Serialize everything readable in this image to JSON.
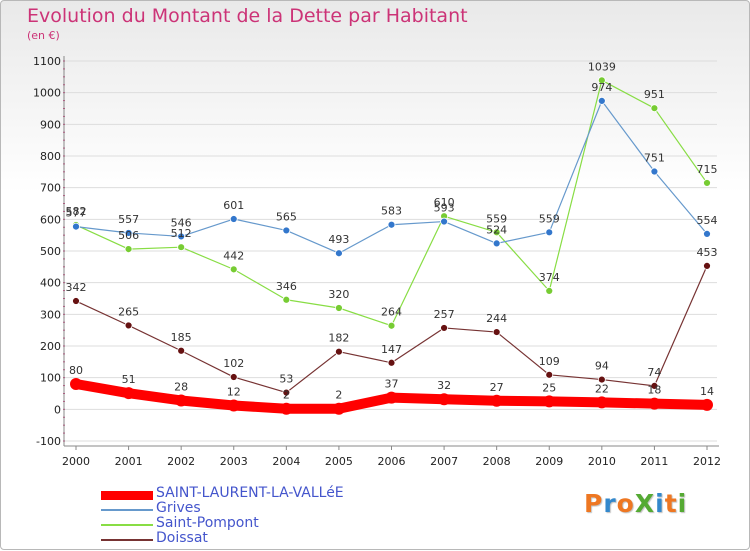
{
  "title": "Evolution du Montant de la Dette par Habitant",
  "unit": "(en €)",
  "logo": "ProXiti",
  "colors": {
    "title": "#cc3377",
    "grid": "#dddddd",
    "axis": "#888888",
    "ticks_accent": "#cc3377",
    "legend_text": "#4455cc"
  },
  "chart_data": {
    "type": "line",
    "x": [
      "2000",
      "2001",
      "2002",
      "2003",
      "2004",
      "2005",
      "2006",
      "2007",
      "2008",
      "2009",
      "2010",
      "2011",
      "2012"
    ],
    "ylim": [
      -100,
      1100
    ],
    "yticks": [
      -100,
      0,
      100,
      200,
      300,
      400,
      500,
      600,
      700,
      800,
      900,
      1000,
      1100
    ],
    "grid": "horizontal",
    "legend_position": "bottom-left",
    "series": [
      {
        "name": "SAINT-LAURENT-LA-VALLéE",
        "color": "#ff0000",
        "point_color": "#ff0000",
        "emphasis": "thick",
        "values": [
          80,
          51,
          28,
          12,
          2,
          2,
          37,
          32,
          27,
          25,
          22,
          18,
          14
        ]
      },
      {
        "name": "Grives",
        "color": "#6699cc",
        "point_color": "#3377cc",
        "emphasis": "normal",
        "values": [
          577,
          557,
          546,
          601,
          565,
          493,
          583,
          593,
          524,
          559,
          974,
          751,
          554
        ]
      },
      {
        "name": "Saint-Pompont",
        "color": "#88dd44",
        "point_color": "#77cc33",
        "emphasis": "normal",
        "values": [
          582,
          506,
          512,
          442,
          346,
          320,
          264,
          610,
          559,
          374,
          1039,
          951,
          715
        ]
      },
      {
        "name": "Doissat",
        "color": "#773333",
        "point_color": "#661111",
        "emphasis": "normal",
        "values": [
          342,
          265,
          185,
          102,
          53,
          182,
          147,
          257,
          244,
          109,
          94,
          74,
          453
        ]
      }
    ]
  }
}
